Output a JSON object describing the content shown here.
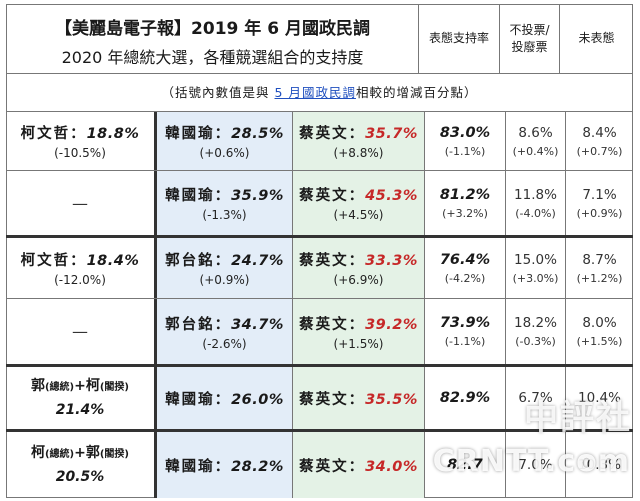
{
  "header": {
    "title_line1": "【美麗島電子報】2019 年 6 月國政民調",
    "title_line2": "2020 年總統大選，各種競選組合的支持度",
    "col_support": "表態支持率",
    "col_novote_1": "不投票/",
    "col_novote_2": "投廢票",
    "col_undecided": "未表態"
  },
  "note": {
    "prefix": "（括號內數值是與 ",
    "highlight": "5 月國政民調",
    "suffix": "相較的增減百分點）"
  },
  "rows": [
    {
      "ko_name": "柯文哲：",
      "ko_pct": "18.8%",
      "ko_chg": "(-10.5%)",
      "han_name": "韓國瑜：",
      "han_pct": "28.5%",
      "han_chg": "(+0.6%)",
      "tsai_name": "蔡英文：",
      "tsai_pct": "35.7%",
      "tsai_chg": "(+8.8%)",
      "support": "83.0%",
      "support_chg": "(-1.1%)",
      "novote": "8.6%",
      "novote_chg": "(+0.4%)",
      "undecided": "8.4%",
      "undecided_chg": "(+0.7%)"
    },
    {
      "ko_dash": "—",
      "han_name": "韓國瑜：",
      "han_pct": "35.9%",
      "han_chg": "(-1.3%)",
      "tsai_name": "蔡英文：",
      "tsai_pct": "45.3%",
      "tsai_chg": "(+4.5%)",
      "support": "81.2%",
      "support_chg": "(+3.2%)",
      "novote": "11.8%",
      "novote_chg": "(-4.0%)",
      "undecided": "7.1%",
      "undecided_chg": "(+0.9%)"
    },
    {
      "ko_name": "柯文哲：",
      "ko_pct": "18.4%",
      "ko_chg": "(-12.0%)",
      "han_name": "郭台銘：",
      "han_pct": "24.7%",
      "han_chg": "(+0.9%)",
      "tsai_name": "蔡英文：",
      "tsai_pct": "33.3%",
      "tsai_chg": "(+6.9%)",
      "support": "76.4%",
      "support_chg": "(-4.2%)",
      "novote": "15.0%",
      "novote_chg": "(+3.0%)",
      "undecided": "8.7%",
      "undecided_chg": "(+1.2%)"
    },
    {
      "ko_dash": "—",
      "han_name": "郭台銘：",
      "han_pct": "34.7%",
      "han_chg": "(-2.6%)",
      "tsai_name": "蔡英文：",
      "tsai_pct": "39.2%",
      "tsai_chg": "(+1.5%)",
      "support": "73.9%",
      "support_chg": "(-1.1%)",
      "novote": "18.2%",
      "novote_chg": "(-0.3%)",
      "undecided": "8.0%",
      "undecided_chg": "(+1.5%)"
    },
    {
      "combo_a": "郭",
      "combo_a_role": "(總統)",
      "combo_b": "+柯",
      "combo_b_role": "(閣揆)",
      "combo_pct": "21.4%",
      "han_name": "韓國瑜：",
      "han_pct": "26.0%",
      "tsai_name": "蔡英文：",
      "tsai_pct": "35.5%",
      "support": "82.9%",
      "novote": "6.7%",
      "undecided": "10.4%"
    },
    {
      "combo_a": "柯",
      "combo_a_role": "(總統)",
      "combo_b": "+郭",
      "combo_b_role": "(閣揆)",
      "combo_pct": "20.5%",
      "han_name": "韓國瑜：",
      "han_pct": "28.2%",
      "tsai_name": "蔡英文：",
      "tsai_pct": "34.0%",
      "support": "82.7",
      "novote": "7.0%",
      "undecided": "10.3%"
    }
  ],
  "watermark": {
    "line1": "中評社",
    "line2": "CRNTT.com"
  },
  "colors": {
    "han_bg": "#e3edf8",
    "tsai_bg": "#e4f2e6",
    "tsai_text": "#c62828",
    "note_link": "#1f4fbf"
  }
}
